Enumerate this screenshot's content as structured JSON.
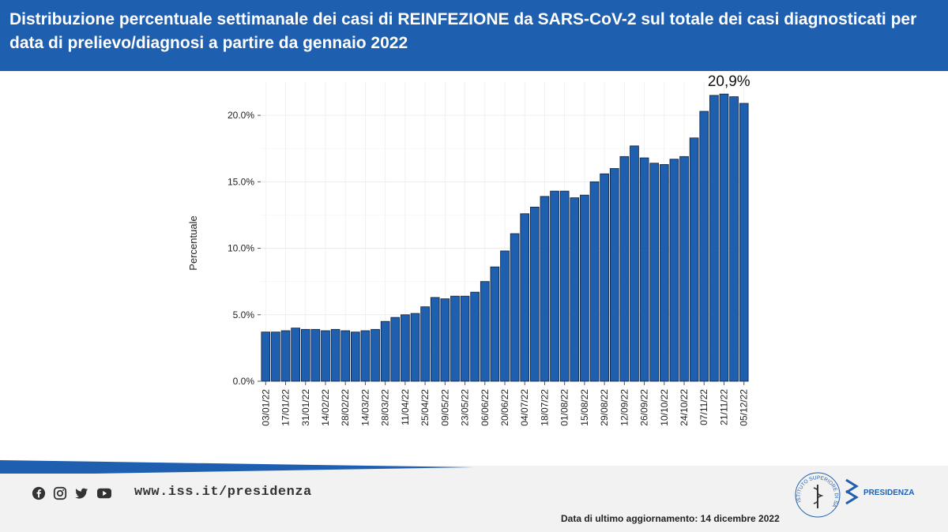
{
  "header": {
    "title": "Distribuzione percentuale settimanale dei casi di REINFEZIONE da SARS-CoV-2 sul totale dei casi diagnosticati per data di prelievo/diagnosi a partire da gennaio 2022"
  },
  "footer": {
    "website": "www.iss.it/presidenza",
    "last_update": "Data di ultimo aggiornamento: 14 dicembre 2022",
    "social_icons": [
      "facebook-icon",
      "instagram-icon",
      "twitter-icon",
      "youtube-icon"
    ],
    "org_label": "PRESIDENZA",
    "seal_text": "ISTITUTO SUPERIORE DI SANITÀ"
  },
  "colors": {
    "header_bg": "#1f5fb0",
    "bar_fill": "#1f5fb0",
    "bar_stroke": "#0d1f3a"
  },
  "chart_data": {
    "type": "bar",
    "title": "",
    "xlabel": "",
    "ylabel": "Percentuale",
    "ylim": [
      0,
      22.5
    ],
    "yticks": [
      0,
      5,
      10,
      15,
      20
    ],
    "ytick_labels": [
      "0.0%",
      "5.0%",
      "10.0%",
      "15.0%",
      "20.0%"
    ],
    "grid": true,
    "categories": [
      "03/01/22",
      "10/01/22",
      "17/01/22",
      "24/01/22",
      "31/01/22",
      "07/02/22",
      "14/02/22",
      "21/02/22",
      "28/02/22",
      "07/03/22",
      "14/03/22",
      "21/03/22",
      "28/03/22",
      "04/04/22",
      "11/04/22",
      "18/04/22",
      "25/04/22",
      "02/05/22",
      "09/05/22",
      "16/05/22",
      "23/05/22",
      "30/05/22",
      "06/06/22",
      "13/06/22",
      "20/06/22",
      "27/06/22",
      "04/07/22",
      "11/07/22",
      "18/07/22",
      "25/07/22",
      "01/08/22",
      "08/08/22",
      "15/08/22",
      "22/08/22",
      "29/08/22",
      "05/09/22",
      "12/09/22",
      "19/09/22",
      "26/09/22",
      "03/10/22",
      "10/10/22",
      "17/10/22",
      "24/10/22",
      "31/10/22",
      "07/11/22",
      "14/11/22",
      "21/11/22",
      "28/11/22",
      "05/12/22"
    ],
    "shown_tick_labels": [
      "03/01/22",
      "17/01/22",
      "31/01/22",
      "14/02/22",
      "28/02/22",
      "14/03/22",
      "28/03/22",
      "11/04/22",
      "25/04/22",
      "09/05/22",
      "23/05/22",
      "06/06/22",
      "20/06/22",
      "04/07/22",
      "18/07/22",
      "01/08/22",
      "15/08/22",
      "29/08/22",
      "12/09/22",
      "26/09/22",
      "10/10/22",
      "24/10/22",
      "07/11/22",
      "21/11/22",
      "05/12/22"
    ],
    "values": [
      3.7,
      3.7,
      3.8,
      4.0,
      3.9,
      3.9,
      3.8,
      3.9,
      3.8,
      3.7,
      3.8,
      3.9,
      4.5,
      4.8,
      5.0,
      5.1,
      5.6,
      6.3,
      6.2,
      6.4,
      6.4,
      6.7,
      7.5,
      8.6,
      9.8,
      11.1,
      12.6,
      13.1,
      13.9,
      14.3,
      14.3,
      13.8,
      14.0,
      15.0,
      15.6,
      16.0,
      16.9,
      17.7,
      16.8,
      16.4,
      16.3,
      16.7,
      16.9,
      18.3,
      20.3,
      21.5,
      21.6,
      21.4,
      20.9
    ],
    "annotation": "20,9%"
  }
}
